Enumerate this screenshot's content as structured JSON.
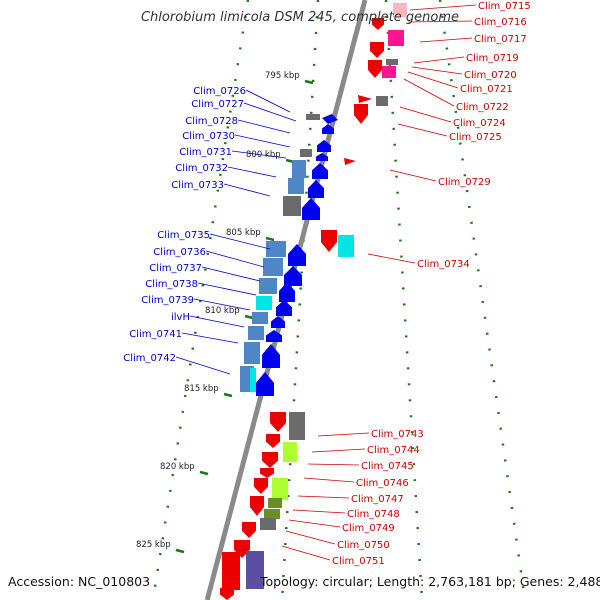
{
  "title": "Chlorobium limicola DSM 245, complete genome",
  "footer": {
    "accession": "Accession: NC_010803",
    "summary": "Topology: circular; Length: 2,763,181 bp; Genes: 2,488"
  },
  "colors": {
    "backbone": "#8a8a8a",
    "tick": "#1a7a1a",
    "left_label": "#0000cc",
    "right_label": "#cc0000",
    "forward_gene": "#0000ee",
    "reverse_gene": "#ee0000",
    "steelblue": "#4f86c6",
    "cyan": "#00e5e5",
    "pink": "#ff1493",
    "lightpink": "#ffb6c1",
    "lime": "#adff2f",
    "olive": "#6b8e23",
    "gray": "#6b6b6b",
    "slateblue": "#5a4fa0"
  },
  "kbp_labels": [
    "795 kbp",
    "800 kbp",
    "805 kbp",
    "810 kbp",
    "815 kbp",
    "820 kbp",
    "825 kbp"
  ],
  "left_genes": [
    "Clim_0726",
    "Clim_0727",
    "Clim_0728",
    "Clim_0730",
    "Clim_0731",
    "Clim_0732",
    "Clim_0733",
    "Clim_0735",
    "Clim_0736",
    "Clim_0737",
    "Clim_0738",
    "Clim_0739",
    "ilvH",
    "Clim_0741",
    "Clim_0742"
  ],
  "right_genes": [
    "Clim_0715",
    "Clim_0716",
    "Clim_0717",
    "Clim_0719",
    "Clim_0720",
    "Clim_0721",
    "Clim_0722",
    "Clim_0724",
    "Clim_0725",
    "Clim_0729",
    "Clim_0734",
    "Clim_0743",
    "Clim_0744",
    "Clim_0745",
    "Clim_0746",
    "Clim_0747",
    "Clim_0748",
    "Clim_0749",
    "Clim_0750",
    "Clim_0751"
  ]
}
